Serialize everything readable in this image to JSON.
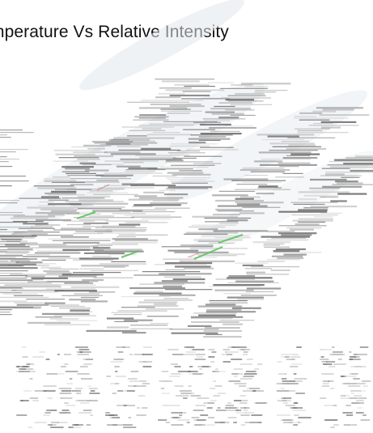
{
  "title": "mperature Vs Relative Intensity",
  "colors": {
    "background": "#ffffff",
    "glare": "#dfe6ec",
    "streak_dark": "#6b6b6b",
    "streak_light": "#b8b8b8",
    "accent_green": "#5fc25f",
    "accent_red": "#d06060"
  }
}
